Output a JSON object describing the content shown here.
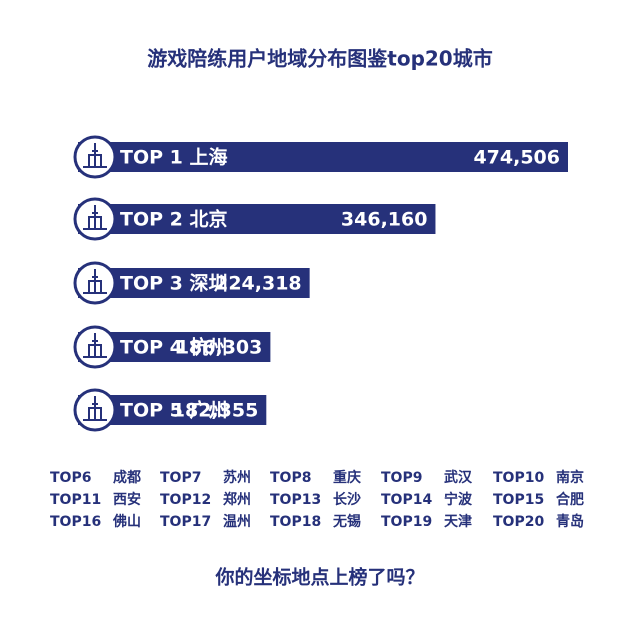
{
  "chart_data": {
    "type": "bar",
    "title": "游戏陪练用户地域分布图鉴top20城市",
    "categories": [
      "TOP 1 上海",
      "TOP 2 北京",
      "TOP 3 深圳",
      "TOP 4 杭州",
      "TOP 5 广州"
    ],
    "values": [
      474506,
      346160,
      224318,
      186303,
      182355
    ],
    "value_labels": [
      "474,506",
      "346,160",
      "224,318",
      "186,303",
      "182,355"
    ],
    "color": "#26317a"
  },
  "ranking": [
    {
      "rank": "TOP6",
      "city": "成都"
    },
    {
      "rank": "TOP7",
      "city": "苏州"
    },
    {
      "rank": "TOP8",
      "city": "重庆"
    },
    {
      "rank": "TOP9",
      "city": "武汉"
    },
    {
      "rank": "TOP10",
      "city": "南京"
    },
    {
      "rank": "TOP11",
      "city": "西安"
    },
    {
      "rank": "TOP12",
      "city": "郑州"
    },
    {
      "rank": "TOP13",
      "city": "长沙"
    },
    {
      "rank": "TOP14",
      "city": "宁波"
    },
    {
      "rank": "TOP15",
      "city": "合肥"
    },
    {
      "rank": "TOP16",
      "city": "佛山"
    },
    {
      "rank": "TOP17",
      "city": "温州"
    },
    {
      "rank": "TOP18",
      "city": "无锡"
    },
    {
      "rank": "TOP19",
      "city": "天津"
    },
    {
      "rank": "TOP20",
      "city": "青岛"
    }
  ],
  "footer": "你的坐标地点上榜了吗？"
}
